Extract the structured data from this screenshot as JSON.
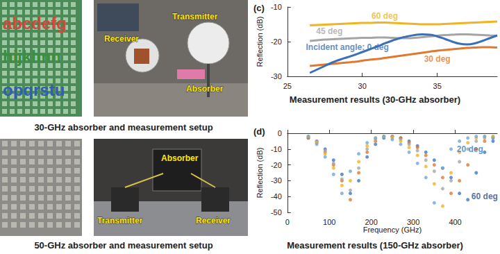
{
  "photos": [
    {
      "caption": "30-GHz absorber and measurement setup",
      "letters": [
        "abcdefg",
        "hijklmn",
        "opqrstu"
      ],
      "labels": [
        "Transmitter",
        "Receiver",
        "Absorber"
      ]
    },
    {
      "caption": "50-GHz absorber and measurement setup",
      "labels": [
        "Absorber",
        "Transmitter",
        "Receiver"
      ]
    }
  ],
  "chart_data": [
    {
      "type": "line",
      "panel_label": "(c)",
      "title": "Measurement results (30-GHz absorber)",
      "ylabel": "Reflection (dB)",
      "xlim": [
        25,
        39
      ],
      "xticks": [
        25,
        30,
        35
      ],
      "ylim": [
        -30,
        -10
      ],
      "yticks": [
        -30,
        -20,
        -10
      ],
      "grid": false,
      "line_style": "solid",
      "x": [
        26.5,
        27,
        27.5,
        28,
        28.5,
        29,
        29.5,
        30,
        30.5,
        31,
        31.5,
        32,
        32.5,
        33,
        33.5,
        34,
        34.5,
        35,
        35.5,
        36,
        36.5,
        37,
        37.5,
        38,
        38.5,
        39
      ],
      "series": [
        {
          "name": "60 deg",
          "color": "#f0b323",
          "values": [
            -15.3,
            -15.2,
            -15.1,
            -15.0,
            -14.9,
            -14.8,
            -14.7,
            -14.6,
            -14.6,
            -14.5,
            -14.5,
            -14.6,
            -14.7,
            -14.8,
            -14.9,
            -15.0,
            -15.0,
            -15.0,
            -14.9,
            -14.8,
            -14.7,
            -14.6,
            -14.5,
            -14.4,
            -14.3,
            -14.2
          ]
        },
        {
          "name": "45 deg",
          "color": "#a5a5a5",
          "values": [
            -19.8,
            -19.6,
            -19.4,
            -19.3,
            -19.2,
            -19.1,
            -19.0,
            -18.9,
            -18.9,
            -18.8,
            -18.8,
            -18.9,
            -19.0,
            -19.0,
            -18.9,
            -18.7,
            -18.5,
            -18.3,
            -18.1,
            -18.0,
            -17.9,
            -17.9,
            -18.0,
            -18.1,
            -18.2,
            -18.3
          ]
        },
        {
          "name": "30 deg",
          "color": "#e0782f",
          "values": [
            -27.0,
            -26.8,
            -26.6,
            -26.4,
            -26.2,
            -26.0,
            -25.8,
            -25.5,
            -25.2,
            -25.0,
            -24.7,
            -24.4,
            -24.1,
            -23.8,
            -23.5,
            -23.2,
            -22.9,
            -22.6,
            -22.4,
            -22.2,
            -22.0,
            -21.8,
            -21.7,
            -21.6,
            -21.6,
            -21.7
          ]
        },
        {
          "name": "Incident angle: 0 deg",
          "color": "#3d6fb6",
          "values": [
            -29.0,
            -28.0,
            -27.0,
            -26.0,
            -25.2,
            -24.5,
            -23.8,
            -23.0,
            -22.2,
            -21.4,
            -20.5,
            -19.7,
            -19.0,
            -18.5,
            -18.1,
            -17.9,
            -18.0,
            -18.5,
            -19.2,
            -20.0,
            -20.6,
            -20.8,
            -20.5,
            -19.8,
            -19.0,
            -18.2
          ]
        }
      ],
      "annotations": [
        {
          "text": "60 deg",
          "x": 31.5,
          "y": -12.5,
          "color": "#f0b323"
        },
        {
          "text": "45 deg",
          "x": 27.8,
          "y": -17.0,
          "color": "#a5a5a5"
        },
        {
          "text": "Incident angle: 0 deg",
          "x": 29,
          "y": -21.6,
          "color": "#3d6fb6"
        },
        {
          "text": "30 deg",
          "x": 35,
          "y": -25,
          "color": "#e0782f"
        }
      ]
    },
    {
      "type": "scatter",
      "panel_label": "(d)",
      "title": "Measurement results (150-GHz absorber)",
      "xlabel": "Frequency (GHz)",
      "ylabel": "Reflection (dB)",
      "xlim": [
        0,
        500
      ],
      "xticks": [
        0,
        100,
        200,
        300,
        400
      ],
      "ylim": [
        -50,
        0
      ],
      "yticks": [
        -50,
        -40,
        -30,
        -20,
        -10,
        0
      ],
      "grid": false,
      "marker": "circle",
      "x": [
        50,
        70,
        90,
        110,
        130,
        150,
        170,
        190,
        210,
        230,
        250,
        270,
        290,
        310,
        330,
        350,
        370,
        390,
        410,
        430,
        450,
        470,
        490
      ],
      "series": [
        {
          "color": "#3d78c2",
          "values": [
            -3,
            -5,
            -10,
            -17,
            -26,
            -38,
            -30,
            -15,
            -7,
            -3,
            -2,
            -3,
            -5,
            -8,
            -12,
            -17,
            -22,
            -28,
            -38,
            -42,
            -25,
            -12,
            -5
          ]
        },
        {
          "color": "#e0782f",
          "values": [
            -3,
            -6,
            -12,
            -20,
            -30,
            -42,
            -25,
            -12,
            -5,
            -2,
            -2,
            -3,
            -6,
            -9,
            -14,
            -20,
            -28,
            -38,
            -30,
            -20,
            -10,
            -5,
            -3
          ]
        },
        {
          "color": "#a5a5a5",
          "values": [
            -2,
            -5,
            -11,
            -19,
            -29,
            -36,
            -22,
            -10,
            -4,
            -2,
            -2,
            -4,
            -7,
            -11,
            -17,
            -24,
            -35,
            -30,
            -18,
            -10,
            -5,
            -3,
            -2
          ]
        },
        {
          "color": "#f0b323",
          "values": [
            -2,
            -6,
            -13,
            -22,
            -33,
            -30,
            -18,
            -8,
            -3,
            -2,
            -3,
            -5,
            -9,
            -14,
            -21,
            -32,
            -46,
            -25,
            -12,
            -6,
            -3,
            -2,
            -2
          ]
        },
        {
          "color": "#6fa8dc",
          "values": [
            -2,
            -7,
            -15,
            -26,
            -38,
            -24,
            -13,
            -6,
            -3,
            -2,
            -4,
            -7,
            -12,
            -19,
            -28,
            -44,
            -22,
            -10,
            -5,
            -3,
            -2,
            -2,
            -3
          ]
        }
      ],
      "annotations": [
        {
          "text": "20 deg",
          "x": 435,
          "y": -10,
          "color": "#3d78c2"
        },
        {
          "text": "60 deg",
          "x": 470,
          "y": -40,
          "color": "#1f4e8c"
        }
      ]
    }
  ]
}
